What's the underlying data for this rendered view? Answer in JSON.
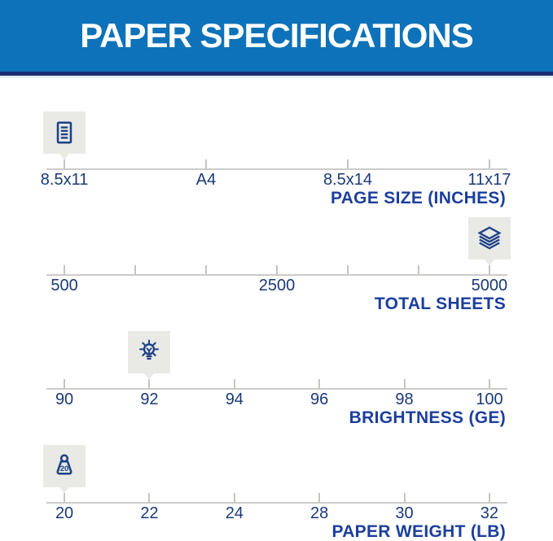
{
  "header": {
    "title": "PAPER SPECIFICATIONS"
  },
  "palette": {
    "banner_blue": "#0d72b9",
    "banner_border_navy": "#1b2d74",
    "banner_text_white": "#ffffff",
    "icon_navy": "#1e4085",
    "tick_label_navy": "#1a3a78",
    "scale_title_blue": "#1c3f9e",
    "rail_gray": "#cbcbc8",
    "badge_gray": "#e9e9e6"
  },
  "scales": [
    {
      "name": "page-size",
      "title": "PAGE SIZE (INCHES)",
      "icon": "document-icon",
      "icon_anchor_index": 0,
      "ticks": [
        "8.5x11",
        "A4",
        "8.5x14",
        "11x17"
      ]
    },
    {
      "name": "total-sheets",
      "title": "TOTAL SHEETS",
      "icon": "sheets-stack-icon",
      "icon_anchor_index": 6,
      "ticks": [
        "500",
        "",
        "",
        "2500",
        "",
        "",
        "5000"
      ]
    },
    {
      "name": "brightness",
      "title": "BRIGHTNESS (GE)",
      "icon": "lightbulb-icon",
      "icon_anchor_index": 1,
      "ticks": [
        "90",
        "92",
        "94",
        "96",
        "98",
        "100"
      ]
    },
    {
      "name": "paper-weight",
      "title": "PAPER WEIGHT (LB)",
      "icon": "weight-icon",
      "icon_badge_text": "20",
      "icon_anchor_index": 0,
      "ticks": [
        "20",
        "22",
        "24",
        "28",
        "30",
        "32"
      ]
    }
  ]
}
